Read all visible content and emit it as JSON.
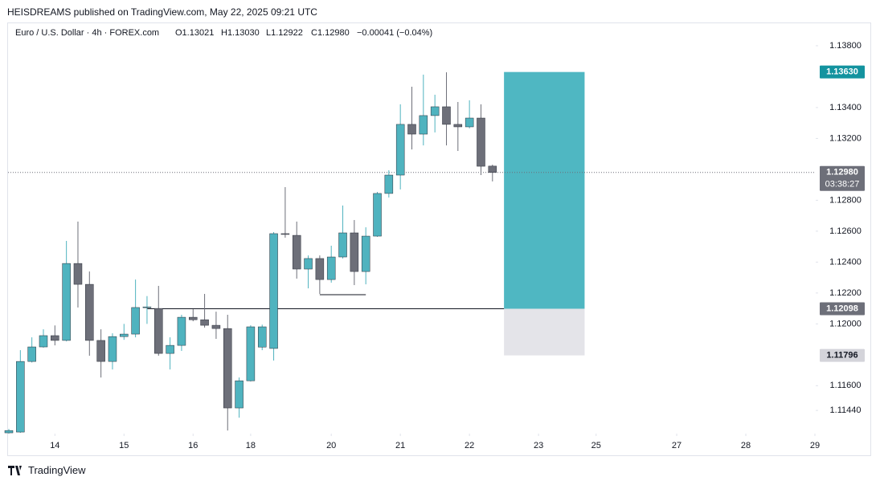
{
  "header": {
    "publisher": "HEISDREAMS published on TradingView.com, May 22, 2025 09:21 UTC"
  },
  "footer": {
    "brand": "TradingView"
  },
  "chart_data": {
    "type": "candlestick",
    "legend": {
      "symbol": "Euro / U.S. Dollar · 4h · FOREX.com",
      "open": "O1.13021",
      "high": "H1.13030",
      "low": "L1.12922",
      "close": "C1.12980",
      "change": "−0.00041 (−0.04%)"
    },
    "x": [
      0,
      1,
      2,
      3,
      4,
      5,
      6,
      7,
      8,
      9,
      10,
      11,
      12,
      13,
      14,
      15,
      16,
      17,
      18,
      19,
      20,
      21,
      22,
      23,
      24,
      25,
      26,
      27,
      28,
      29,
      30,
      31,
      32,
      33,
      34,
      35,
      36,
      37,
      38,
      39,
      40,
      41,
      42
    ],
    "open": [
      1.11295,
      1.113,
      1.11757,
      1.11851,
      1.11924,
      1.11893,
      1.12391,
      1.12256,
      1.11893,
      1.11757,
      1.11918,
      1.11934,
      1.12106,
      1.121,
      1.11809,
      1.11861,
      1.12043,
      1.12027,
      1.11991,
      1.1197,
      1.11456,
      1.11632,
      1.1185,
      1.11841,
      1.12584,
      1.12573,
      1.12355,
      1.12423,
      1.12287,
      1.12433,
      1.12589,
      1.12339,
      1.12568,
      1.12844,
      1.12963,
      1.13291,
      1.13228,
      1.13348,
      1.13405,
      1.13291,
      1.13275,
      1.13332,
      1.13021
    ],
    "high": [
      1.1132,
      1.1183,
      1.11913,
      1.11965,
      1.1199,
      1.12537,
      1.12662,
      1.12339,
      1.11965,
      1.11939,
      1.12,
      1.12287,
      1.1218,
      1.12246,
      1.11913,
      1.12059,
      1.12095,
      1.12194,
      1.12079,
      1.12059,
      1.11653,
      1.11991,
      1.11995,
      1.12594,
      1.12885,
      1.12662,
      1.12443,
      1.12443,
      1.12506,
      1.12766,
      1.12672,
      1.12625,
      1.12854,
      1.12994,
      1.13421,
      1.13535,
      1.13613,
      1.13483,
      1.13628,
      1.13436,
      1.13447,
      1.13421,
      1.1303
    ],
    "low": [
      1.1129,
      1.11295,
      1.1175,
      1.11846,
      1.11861,
      1.11887,
      1.12106,
      1.11794,
      1.11653,
      1.11705,
      1.11897,
      1.11913,
      1.12,
      1.11794,
      1.11705,
      1.11825,
      1.12017,
      1.11976,
      1.11903,
      1.1131,
      1.11393,
      1.11627,
      1.1183,
      1.11763,
      1.12558,
      1.12293,
      1.1223,
      1.12194,
      1.12267,
      1.12423,
      1.12251,
      1.12256,
      1.12563,
      1.12818,
      1.1287,
      1.13129,
      1.13155,
      1.13239,
      1.13155,
      1.13119,
      1.13265,
      1.12963,
      1.12922
    ],
    "close": [
      1.1131,
      1.11757,
      1.11851,
      1.11924,
      1.11893,
      1.12391,
      1.12256,
      1.11893,
      1.11757,
      1.11918,
      1.11934,
      1.12106,
      1.1211,
      1.11809,
      1.11861,
      1.12043,
      1.12027,
      1.11991,
      1.1197,
      1.11456,
      1.11632,
      1.11981,
      1.11981,
      1.12584,
      1.12579,
      1.12355,
      1.12423,
      1.12287,
      1.12433,
      1.12589,
      1.12339,
      1.12568,
      1.12844,
      1.12963,
      1.13291,
      1.13228,
      1.13348,
      1.13405,
      1.13291,
      1.13275,
      1.13332,
      1.1302,
      1.1298
    ],
    "up_color": "#4fb3bf",
    "down_color": "#6d6f79",
    "xlim": [
      -0.07,
      70.07
    ],
    "xticks": [
      {
        "value": 4,
        "label": "14"
      },
      {
        "value": 10,
        "label": "15"
      },
      {
        "value": 16,
        "label": "16"
      },
      {
        "value": 21,
        "label": "18"
      },
      {
        "value": 28,
        "label": "20"
      },
      {
        "value": 34,
        "label": "21"
      },
      {
        "value": 40,
        "label": "22"
      },
      {
        "value": 46,
        "label": "23"
      },
      {
        "value": 51,
        "label": "25"
      },
      {
        "value": 58,
        "label": "27"
      },
      {
        "value": 64,
        "label": "28"
      },
      {
        "value": 70,
        "label": "29"
      }
    ],
    "ylim": [
      1.1129,
      1.1394
    ],
    "yticks": [
      {
        "value": 1.138,
        "label": "1.13800"
      },
      {
        "value": 1.134,
        "label": "1.13400"
      },
      {
        "value": 1.132,
        "label": "1.13200"
      },
      {
        "value": 1.128,
        "label": "1.12800"
      },
      {
        "value": 1.126,
        "label": "1.12600"
      },
      {
        "value": 1.124,
        "label": "1.12400"
      },
      {
        "value": 1.122,
        "label": "1.12200"
      },
      {
        "value": 1.12,
        "label": "1.12000"
      },
      {
        "value": 1.116,
        "label": "1.11600"
      },
      {
        "value": 1.1144,
        "label": "1.11440"
      }
    ],
    "grid": false,
    "position": {
      "x_start": 43,
      "x_end": 50,
      "entry": 1.12098,
      "target": 1.1363,
      "stop": 1.11796,
      "profit_color": "#4fb7c2",
      "loss_color": "#e4e4e9"
    },
    "lines": [
      {
        "x_start": 12,
        "x_end": 43,
        "price": 1.12098
      },
      {
        "x_start": 27,
        "x_end": 31,
        "price": 1.12189
      }
    ],
    "price_labels": [
      {
        "value": 1.1363,
        "label": "1.13630",
        "color": "#13939f"
      },
      {
        "value": 1.1298,
        "label": "1.12980",
        "sub": "03:38:27",
        "color": "#6d6f79"
      },
      {
        "value": 1.12098,
        "label": "1.12098",
        "color": "#6d6f79"
      },
      {
        "value": 1.11796,
        "label": "1.11796",
        "color": "#d4d4da"
      }
    ]
  }
}
